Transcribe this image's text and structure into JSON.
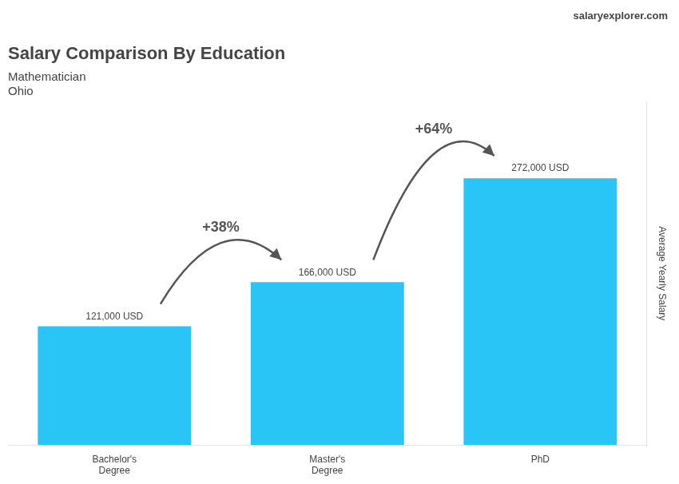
{
  "chart_data": {
    "type": "bar",
    "title": "Salary Comparison By Education",
    "subtitle": [
      "Mathematician",
      "Ohio"
    ],
    "ylabel": "Average Yearly Salary",
    "categories": [
      "Bachelor's\nDegree",
      "Master's\nDegree",
      "PhD"
    ],
    "values": [
      121000,
      166000,
      272000
    ],
    "value_labels": [
      "121,000 USD",
      "166,000 USD",
      "272,000 USD"
    ],
    "data_labels": true,
    "color": "#29c5f6",
    "ylim": [
      0,
      350000
    ],
    "grid": false,
    "tick_labels": "x",
    "annotations": [
      {
        "text": "salaryexplorer.com"
      },
      {
        "text": "+38%",
        "from": 0,
        "to": 1
      },
      {
        "text": "+64%",
        "from": 1,
        "to": 2
      }
    ]
  }
}
